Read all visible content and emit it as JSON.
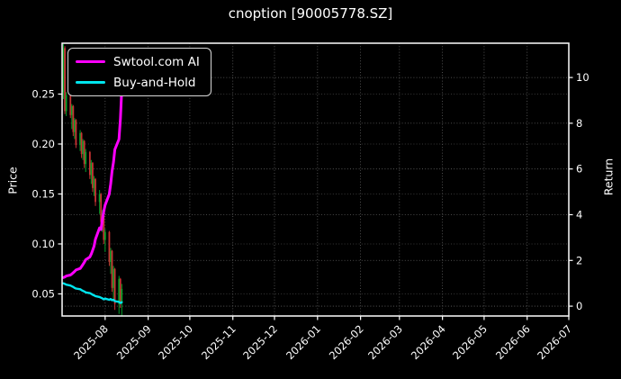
{
  "title": "cnoption [90005778.SZ]",
  "legend": {
    "items": [
      {
        "label": "Swtool.com AI",
        "color": "#ff00ff"
      },
      {
        "label": "Buy-and-Hold",
        "color": "#00e5ee"
      }
    ]
  },
  "axes": {
    "price": {
      "label": "Price",
      "ticks": [
        "0.05",
        "0.10",
        "0.15",
        "0.20",
        "0.25"
      ]
    },
    "return": {
      "label": "Return",
      "ticks": [
        "0",
        "2",
        "4",
        "6",
        "8",
        "10"
      ]
    },
    "x": {
      "ticks": [
        "2025-08",
        "2025-09",
        "2025-10",
        "2025-11",
        "2025-12",
        "2026-01",
        "2026-02",
        "2026-03",
        "2026-04",
        "2026-05",
        "2026-06",
        "2026-07"
      ]
    }
  },
  "colors": {
    "background": "#000000",
    "text": "#ffffff",
    "grid": "#6e6e6e",
    "spine": "#ffffff",
    "candle_up": "#00a028",
    "candle_down": "#c83232",
    "ai_line": "#ff00ff",
    "buy_hold_line": "#00e5ee"
  },
  "chart_data": {
    "type": "candlestick+line",
    "title": "cnoption [90005778.SZ]",
    "x_range": [
      "2025-07-01",
      "2026-07-01"
    ],
    "price_ylim": [
      0.0279,
      0.3009
    ],
    "return_ylim": [
      -0.43,
      11.5
    ],
    "grid": "dotted gray, horizontal at price and return ticks, vertical at month ticks",
    "legend_position": "upper-left",
    "candles": {
      "dates": [
        "2025-07-02",
        "2025-07-03",
        "2025-07-04",
        "2025-07-07",
        "2025-07-08",
        "2025-07-09",
        "2025-07-10",
        "2025-07-11",
        "2025-07-14",
        "2025-07-15",
        "2025-07-16",
        "2025-07-17",
        "2025-07-18",
        "2025-07-21",
        "2025-07-22",
        "2025-07-23",
        "2025-07-24",
        "2025-07-25",
        "2025-07-28",
        "2025-07-29",
        "2025-07-30",
        "2025-07-31",
        "2025-08-01",
        "2025-08-04",
        "2025-08-05",
        "2025-08-06",
        "2025-08-07",
        "2025-08-08",
        "2025-08-11",
        "2025-08-12",
        "2025-08-13"
      ],
      "open": [
        0.252,
        0.296,
        0.233,
        0.249,
        0.229,
        0.238,
        0.212,
        0.224,
        0.199,
        0.211,
        0.19,
        0.203,
        0.18,
        0.192,
        0.169,
        0.181,
        0.156,
        0.165,
        0.142,
        0.15,
        0.122,
        0.131,
        0.104,
        0.112,
        0.082,
        0.093,
        0.056,
        0.075,
        0.04,
        0.065,
        0.042
      ],
      "high": [
        0.3,
        0.298,
        0.252,
        0.251,
        0.24,
        0.239,
        0.226,
        0.225,
        0.214,
        0.212,
        0.205,
        0.204,
        0.195,
        0.193,
        0.184,
        0.182,
        0.168,
        0.166,
        0.154,
        0.151,
        0.134,
        0.132,
        0.115,
        0.113,
        0.096,
        0.094,
        0.078,
        0.076,
        0.068,
        0.066,
        0.06
      ],
      "low": [
        0.245,
        0.23,
        0.228,
        0.226,
        0.215,
        0.208,
        0.205,
        0.196,
        0.193,
        0.186,
        0.184,
        0.176,
        0.172,
        0.165,
        0.16,
        0.152,
        0.148,
        0.138,
        0.13,
        0.118,
        0.112,
        0.1,
        0.092,
        0.078,
        0.07,
        0.052,
        0.044,
        0.034,
        0.03,
        0.036,
        0.028
      ],
      "close": [
        0.296,
        0.233,
        0.249,
        0.229,
        0.238,
        0.212,
        0.224,
        0.199,
        0.211,
        0.19,
        0.203,
        0.18,
        0.192,
        0.169,
        0.181,
        0.156,
        0.165,
        0.142,
        0.15,
        0.122,
        0.131,
        0.104,
        0.112,
        0.082,
        0.093,
        0.056,
        0.075,
        0.04,
        0.065,
        0.042,
        0.055
      ]
    },
    "series": [
      {
        "name": "Swtool.com AI",
        "axis": "return",
        "color": "#ff00ff",
        "values": [
          1.25,
          1.28,
          1.32,
          1.36,
          1.41,
          1.46,
          1.52,
          1.58,
          1.65,
          1.73,
          1.82,
          1.92,
          2.03,
          2.15,
          2.28,
          2.44,
          2.62,
          2.92,
          3.42,
          3.35,
          3.78,
          4.15,
          4.42,
          4.9,
          5.35,
          5.9,
          6.3,
          6.85,
          7.3,
          8.2,
          9.5
        ]
      },
      {
        "name": "Buy-and-Hold",
        "axis": "return",
        "color": "#00e5ee",
        "values": [
          1.0,
          0.97,
          0.94,
          0.9,
          0.87,
          0.84,
          0.8,
          0.77,
          0.74,
          0.7,
          0.67,
          0.64,
          0.6,
          0.57,
          0.54,
          0.5,
          0.47,
          0.44,
          0.4,
          0.37,
          0.34,
          0.3,
          0.33,
          0.28,
          0.31,
          0.26,
          0.28,
          0.22,
          0.19,
          0.14,
          0.17
        ]
      }
    ]
  }
}
